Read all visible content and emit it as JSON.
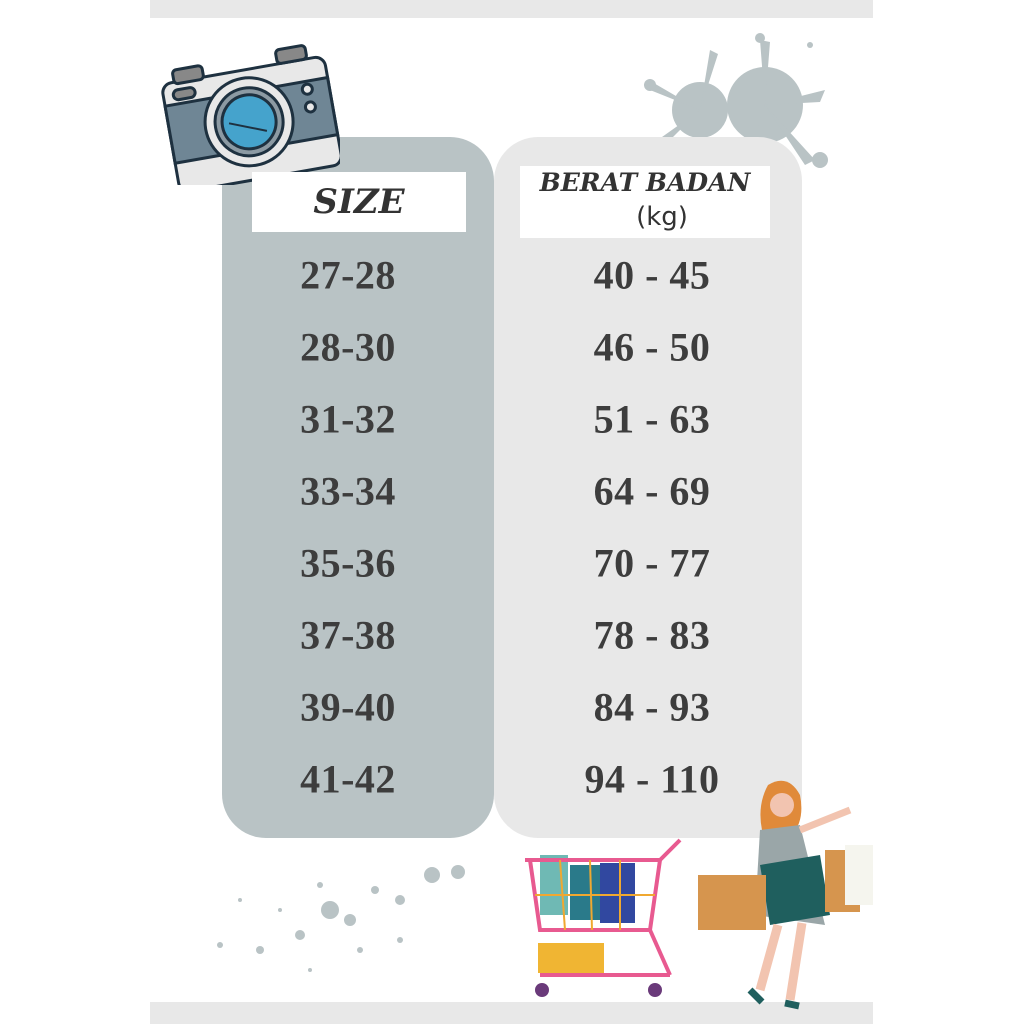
{
  "header": {
    "size_title": "SIZE",
    "weight_title": "BERAT BADAN",
    "weight_unit": "(kg)"
  },
  "rows": [
    {
      "size": "27-28",
      "weight": "40 - 45"
    },
    {
      "size": "28-30",
      "weight": "46 - 50"
    },
    {
      "size": "31-32",
      "weight": "51 - 63"
    },
    {
      "size": "33-34",
      "weight": "64 - 69"
    },
    {
      "size": "35-36",
      "weight": "70 - 77"
    },
    {
      "size": "37-38",
      "weight": "78 - 83"
    },
    {
      "size": "39-40",
      "weight": "84 - 93"
    },
    {
      "size": "41-42",
      "weight": "94 - 110"
    }
  ],
  "colors": {
    "size_column": "#b9c3c5",
    "weight_column": "#e8e8e8",
    "text": "#3d3d3d",
    "accent_blue": "#45a3cc",
    "shopping_bag": "#d6954e",
    "dress_teal": "#1f5f5e"
  },
  "icons": [
    "camera-icon",
    "paint-splash-icon",
    "shopping-cart-icon",
    "shopping-woman-illustration",
    "paint-speckles"
  ]
}
